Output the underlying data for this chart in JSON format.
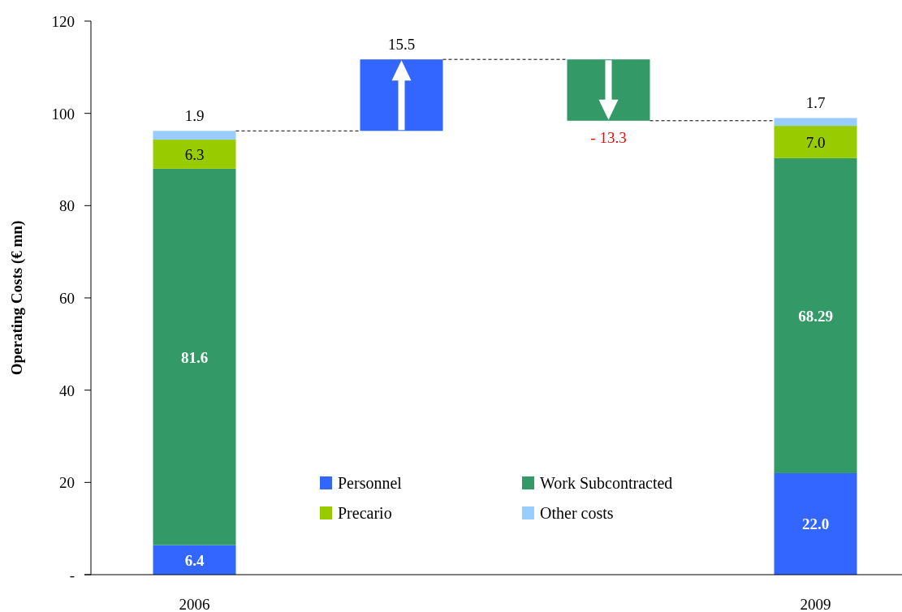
{
  "chart_data": {
    "type": "bar",
    "stacked": true,
    "categories": [
      "2006",
      null,
      null,
      "2009"
    ],
    "series": [
      {
        "name": "Personnel",
        "color": "#3366ff",
        "values": [
          6.4,
          15.5,
          null,
          22.0
        ],
        "base": [
          null,
          96.2,
          null,
          null
        ],
        "value_labels": [
          "6.4",
          "15.5",
          null,
          "22.0"
        ]
      },
      {
        "name": "Work Subcontracted",
        "color": "#339966",
        "values": [
          81.6,
          null,
          -13.3,
          68.29
        ],
        "base": [
          null,
          null,
          111.7,
          null
        ],
        "value_labels": [
          "81.6",
          null,
          "- 13.3",
          "68.29"
        ]
      },
      {
        "name": "Precario",
        "color": "#99cc00",
        "values": [
          6.3,
          null,
          null,
          7.0
        ],
        "value_labels": [
          "6.3",
          null,
          null,
          "7.0"
        ]
      },
      {
        "name": "Other costs",
        "color": "#99ccff",
        "values": [
          1.9,
          null,
          null,
          1.7
        ],
        "value_labels": [
          "1.9",
          null,
          null,
          "1.7"
        ]
      }
    ],
    "ylabel": "Operating Costs (€ mn)",
    "ylim": [
      0,
      120
    ],
    "yticks": [
      {
        "value": 0,
        "label": "-"
      },
      20,
      40,
      60,
      80,
      100,
      120
    ],
    "legend": "bottom"
  }
}
